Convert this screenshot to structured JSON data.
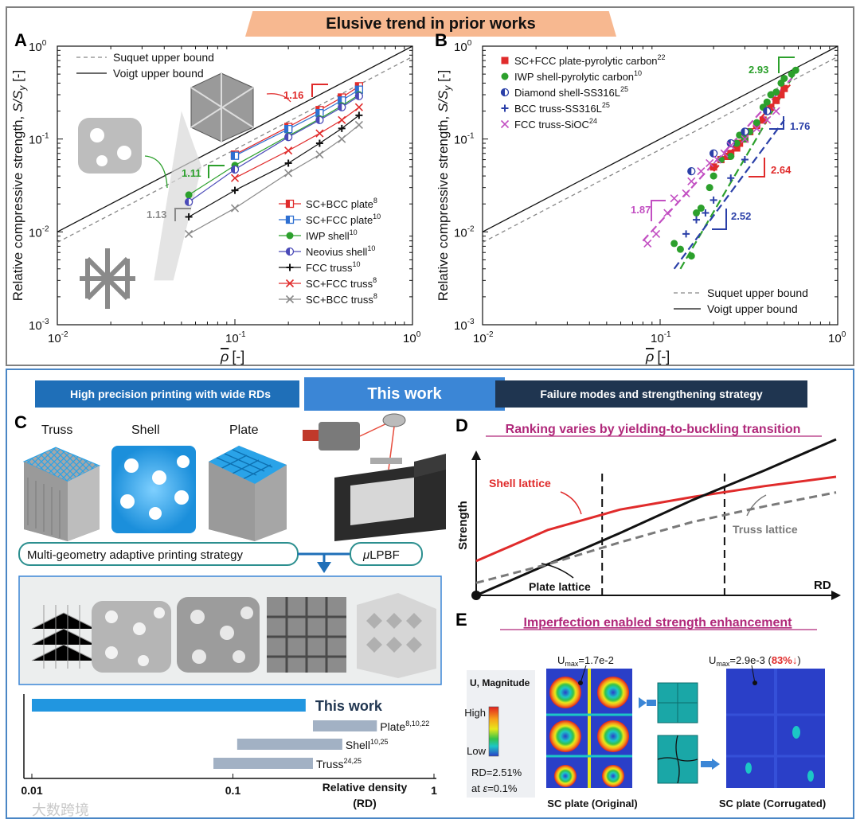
{
  "banner": {
    "top_title": "Elusive trend in prior works"
  },
  "ribbons": {
    "left": "High precision printing with wide RDs",
    "center": "This work",
    "right": "Failure modes and strengthening strategy"
  },
  "panel_labels": {
    "a": "A",
    "b": "B",
    "c": "C",
    "d": "D",
    "e": "E"
  },
  "colors": {
    "red": "#e02b2b",
    "blue": "#2e6fd1",
    "green": "#2ca02c",
    "navy": "#4a4ab8",
    "black": "#111111",
    "gray": "#8a8a8a",
    "magenta": "#c24fc2",
    "darkblue": "#2a3fa8",
    "accent_blue": "#2196e0",
    "ribbon_dark": "#1f3550"
  },
  "chart_data": [
    {
      "id": "A",
      "type": "scatter",
      "xscale": "log",
      "yscale": "log",
      "xlim": [
        0.01,
        1
      ],
      "ylim": [
        0.001,
        1
      ],
      "xlabel_sym": "ρ",
      "xlabel_unit": "[-]",
      "ylabel": "Relative compressive strength,",
      "ylabel_sym": "S/S",
      "ylabel_sub": "y",
      "ylabel_unit": "[-]",
      "xticks": [
        {
          "v": 0.01,
          "b": "10",
          "e": "-2"
        },
        {
          "v": 0.1,
          "b": "10",
          "e": "-1"
        },
        {
          "v": 1,
          "b": "10",
          "e": "0"
        }
      ],
      "yticks": [
        {
          "v": 0.001,
          "b": "10",
          "e": "-3"
        },
        {
          "v": 0.01,
          "b": "10",
          "e": "-2"
        },
        {
          "v": 0.1,
          "b": "10",
          "e": "-1"
        },
        {
          "v": 1,
          "b": "10",
          "e": "0"
        }
      ],
      "bounds": [
        {
          "name": "Suquet upper bound",
          "style": "dashed",
          "x": [
            0.01,
            1
          ],
          "y": [
            0.0077,
            0.77
          ]
        },
        {
          "name": "Voigt upper bound",
          "style": "solid",
          "x": [
            0.01,
            1
          ],
          "y": [
            0.01,
            1
          ]
        }
      ],
      "series": [
        {
          "name": "SC+BCC plate",
          "ref": "8",
          "color": "red",
          "marker": "halfsquare",
          "x": [
            0.1,
            0.2,
            0.3,
            0.4,
            0.5
          ],
          "y": [
            0.068,
            0.135,
            0.205,
            0.28,
            0.37
          ]
        },
        {
          "name": "SC+FCC plate",
          "ref": "10",
          "color": "blue",
          "marker": "halfsquare",
          "x": [
            0.1,
            0.2,
            0.3,
            0.4,
            0.5
          ],
          "y": [
            0.066,
            0.128,
            0.19,
            0.26,
            0.34
          ]
        },
        {
          "name": "IWP shell",
          "ref": "10",
          "color": "green",
          "marker": "circle",
          "x": [
            0.055,
            0.1,
            0.2,
            0.3,
            0.4,
            0.5
          ],
          "y": [
            0.025,
            0.052,
            0.108,
            0.165,
            0.228,
            0.3
          ]
        },
        {
          "name": "Neovius shell",
          "ref": "10",
          "color": "navy",
          "marker": "halfcircle",
          "x": [
            0.055,
            0.1,
            0.2,
            0.3,
            0.4,
            0.5
          ],
          "y": [
            0.021,
            0.047,
            0.105,
            0.16,
            0.22,
            0.29
          ]
        },
        {
          "name": "FCC truss",
          "ref": "10",
          "color": "black",
          "marker": "plus",
          "x": [
            0.055,
            0.1,
            0.2,
            0.3,
            0.4,
            0.5
          ],
          "y": [
            0.0145,
            0.028,
            0.055,
            0.09,
            0.13,
            0.18
          ]
        },
        {
          "name": "SC+FCC truss",
          "ref": "8",
          "color": "red",
          "marker": "x",
          "x": [
            0.1,
            0.2,
            0.3,
            0.4,
            0.5
          ],
          "y": [
            0.038,
            0.075,
            0.115,
            0.16,
            0.22
          ]
        },
        {
          "name": "SC+BCC truss",
          "ref": "8",
          "color": "gray",
          "marker": "x",
          "x": [
            0.055,
            0.1,
            0.2,
            0.3,
            0.4,
            0.5
          ],
          "y": [
            0.0095,
            0.018,
            0.043,
            0.068,
            0.1,
            0.142
          ]
        }
      ],
      "annotations": [
        {
          "text": "1.16",
          "color": "red"
        },
        {
          "text": "1.11",
          "color": "green"
        },
        {
          "text": "1.13",
          "color": "gray"
        }
      ]
    },
    {
      "id": "B",
      "type": "scatter",
      "xscale": "log",
      "yscale": "log",
      "xlim": [
        0.01,
        1
      ],
      "ylim": [
        0.001,
        1
      ],
      "xlabel_sym": "ρ",
      "xlabel_unit": "[-]",
      "ylabel": "Relative compressive strength,",
      "ylabel_sym": "S/S",
      "ylabel_sub": "y",
      "ylabel_unit": "[-]",
      "xticks": [
        {
          "v": 0.01,
          "b": "10",
          "e": "-2"
        },
        {
          "v": 0.1,
          "b": "10",
          "e": "-1"
        },
        {
          "v": 1,
          "b": "10",
          "e": "0"
        }
      ],
      "yticks": [
        {
          "v": 0.001,
          "b": "10",
          "e": "-3"
        },
        {
          "v": 0.01,
          "b": "10",
          "e": "-2"
        },
        {
          "v": 0.1,
          "b": "10",
          "e": "-1"
        },
        {
          "v": 1,
          "b": "10",
          "e": "0"
        }
      ],
      "bounds": [
        {
          "name": "Suquet upper bound",
          "style": "dashed",
          "x": [
            0.01,
            1
          ],
          "y": [
            0.0077,
            0.77
          ]
        },
        {
          "name": "Voigt upper bound",
          "style": "solid",
          "x": [
            0.01,
            1
          ],
          "y": [
            0.01,
            1
          ]
        }
      ],
      "series": [
        {
          "name": "SC+FCC plate-pyrolytic carbon",
          "ref": "22",
          "color": "red",
          "marker": "square",
          "x": [
            0.2,
            0.22,
            0.24,
            0.25,
            0.27,
            0.28,
            0.3,
            0.32,
            0.35,
            0.38,
            0.4,
            0.42,
            0.45,
            0.48,
            0.5
          ],
          "y": [
            0.05,
            0.06,
            0.065,
            0.07,
            0.08,
            0.09,
            0.1,
            0.12,
            0.14,
            0.16,
            0.2,
            0.22,
            0.26,
            0.3,
            0.35
          ]
        },
        {
          "name": "IWP shell-pyrolytic carbon",
          "ref": "10",
          "color": "green",
          "marker": "circle",
          "x": [
            0.12,
            0.13,
            0.15,
            0.16,
            0.17,
            0.19,
            0.2,
            0.22,
            0.25,
            0.27,
            0.28,
            0.3,
            0.32,
            0.35,
            0.38,
            0.4,
            0.42,
            0.45,
            0.48,
            0.5,
            0.55,
            0.58
          ],
          "y": [
            0.0075,
            0.0065,
            0.0055,
            0.016,
            0.018,
            0.03,
            0.04,
            0.06,
            0.065,
            0.09,
            0.11,
            0.1,
            0.12,
            0.15,
            0.22,
            0.25,
            0.3,
            0.32,
            0.4,
            0.45,
            0.5,
            0.55
          ]
        },
        {
          "name": "Diamond shell-SS316L",
          "ref": "25",
          "color": "darkblue",
          "marker": "halfcircle",
          "x": [
            0.15,
            0.2,
            0.25,
            0.3,
            0.4
          ],
          "y": [
            0.045,
            0.07,
            0.09,
            0.12,
            0.2
          ]
        },
        {
          "name": "BCC truss-SS316L",
          "ref": "25",
          "color": "darkblue",
          "marker": "plus",
          "x": [
            0.14,
            0.16,
            0.18,
            0.2,
            0.25,
            0.3
          ],
          "y": [
            0.0095,
            0.0135,
            0.016,
            0.022,
            0.038,
            0.06
          ]
        },
        {
          "name": "FCC truss-SiOC",
          "ref": "24",
          "color": "magenta",
          "marker": "x",
          "x": [
            0.085,
            0.095,
            0.11,
            0.12,
            0.14,
            0.15,
            0.17,
            0.19,
            0.21,
            0.23,
            0.25,
            0.3,
            0.35,
            0.4,
            0.45
          ],
          "y": [
            0.0075,
            0.0095,
            0.016,
            0.023,
            0.026,
            0.035,
            0.045,
            0.055,
            0.06,
            0.07,
            0.085,
            0.1,
            0.13,
            0.16,
            0.2
          ]
        }
      ],
      "annotations": [
        {
          "text": "2.93",
          "color": "green"
        },
        {
          "text": "1.76",
          "color": "darkblue"
        },
        {
          "text": "2.64",
          "color": "red"
        },
        {
          "text": "1.87",
          "color": "magenta"
        },
        {
          "text": "2.52",
          "color": "darkblue"
        }
      ]
    },
    {
      "id": "D",
      "type": "line",
      "title": "Ranking varies by yielding-to-buckling transition",
      "xlabel": "RD",
      "ylabel": "Strength",
      "series": [
        {
          "name": "Shell lattice",
          "color": "red",
          "style": "solid",
          "x": [
            0,
            0.2,
            0.4,
            0.6,
            0.8,
            1.0
          ],
          "y": [
            0.22,
            0.42,
            0.55,
            0.63,
            0.7,
            0.76
          ]
        },
        {
          "name": "Plate lattice",
          "color": "black",
          "style": "solid",
          "x": [
            0,
            0.2,
            0.4,
            0.6,
            0.8,
            1.0
          ],
          "y": [
            0.0,
            0.2,
            0.4,
            0.61,
            0.8,
            1.0
          ]
        },
        {
          "name": "Truss lattice",
          "color": "gray",
          "style": "dashed",
          "x": [
            0,
            0.2,
            0.4,
            0.6,
            0.8,
            1.0
          ],
          "y": [
            0.08,
            0.2,
            0.34,
            0.47,
            0.57,
            0.66
          ]
        }
      ],
      "transitions_x": [
        0.35,
        0.69
      ]
    },
    {
      "id": "C-bars",
      "type": "bar",
      "orientation": "horizontal",
      "xscale": "log",
      "xlim": [
        0.01,
        1
      ],
      "xlabel": "Relative density",
      "xlabel2": "(RD)",
      "xticks": [
        "0.01",
        "0.1",
        "1"
      ],
      "bars": [
        {
          "name": "This work",
          "ref": "",
          "start": 0.01,
          "end": 0.23,
          "color": "accent_blue"
        },
        {
          "name": "Plate",
          "ref": "8,10,22",
          "start": 0.25,
          "end": 0.52,
          "color": "gray"
        },
        {
          "name": "Shell",
          "ref": "10,25",
          "start": 0.105,
          "end": 0.35,
          "color": "gray"
        },
        {
          "name": "Truss",
          "ref": "24,25",
          "start": 0.08,
          "end": 0.25,
          "color": "gray"
        }
      ]
    }
  ],
  "panelC": {
    "lattice_labels": [
      "Truss",
      "Shell",
      "Plate"
    ],
    "strategy": "Multi-geometry adaptive printing strategy",
    "process_mu": "μ",
    "process": "LPBF"
  },
  "panelD": {
    "shell_label": "Shell lattice",
    "plate_label": "Plate lattice",
    "truss_label": "Truss lattice"
  },
  "panelE": {
    "title": "Imperfection enabled strength enhancement",
    "legend_title": "U, Magnitude",
    "legend_high": "High",
    "legend_low": "Low",
    "rd_note": "RD=2.51%",
    "strain_pre": "at ",
    "strain_sym": "ε",
    "strain_post": "=0.1%",
    "umax_sym": "U",
    "umax_sub": "max",
    "umax_left": "=1.7e-2",
    "umax_right": "=2.9e-3 (",
    "umax_right_pct": "83%↓",
    "umax_right_close": ")",
    "left_caption": "SC plate (Original)",
    "right_caption": "SC plate (Corrugated)"
  },
  "watermark": "大数跨境"
}
